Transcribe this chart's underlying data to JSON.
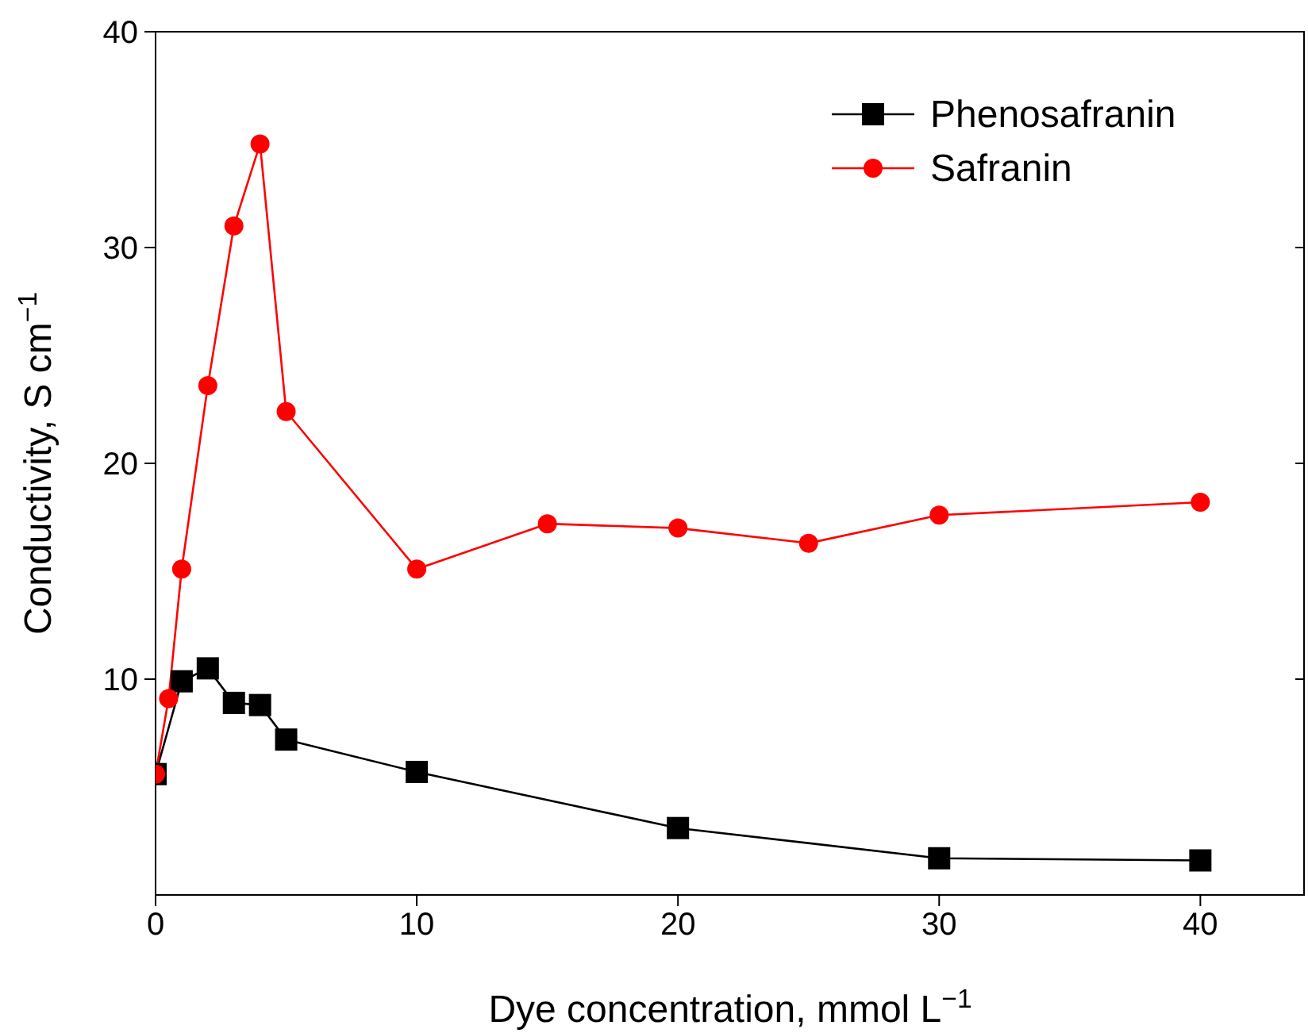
{
  "chart_data": {
    "type": "line",
    "xlabel": "Dye concentration, mmol L$^{−1}$",
    "ylabel": "Conductivity, S cm$^{−1}$",
    "xlim": [
      0,
      44
    ],
    "xticks": [
      0,
      10,
      20,
      30,
      40
    ],
    "ylim": [
      0,
      40
    ],
    "yticks": [
      10,
      20,
      30,
      40
    ],
    "legend": "top right",
    "grid": false,
    "series": [
      {
        "name": "Phenosafranin",
        "color": "#000000",
        "marker": "square",
        "x": [
          0,
          1,
          2,
          3,
          4,
          5,
          10,
          20,
          30,
          40
        ],
        "values": [
          5.6,
          9.9,
          10.5,
          8.9,
          8.8,
          7.2,
          5.7,
          3.1,
          1.7,
          1.6
        ]
      },
      {
        "name": "Safranin",
        "color": "#ff0000",
        "marker": "circle",
        "x": [
          0,
          0.5,
          1,
          2,
          3,
          4,
          5,
          10,
          15,
          20,
          25,
          30,
          40
        ],
        "values": [
          5.6,
          9.1,
          15.1,
          23.6,
          31.0,
          34.8,
          22.4,
          15.1,
          17.2,
          17.0,
          16.3,
          17.6,
          18.2
        ]
      }
    ]
  }
}
